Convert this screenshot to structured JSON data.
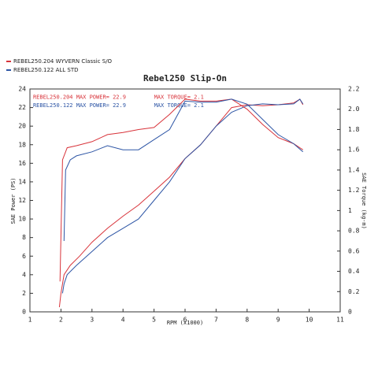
{
  "chart_data": {
    "type": "line",
    "title": "Rebel250 Slip-On",
    "x_label": "RPM (x1000)",
    "y_label": "SAE Power (PS)",
    "y2_label": "SAE Torque (kg-m)",
    "xlim": [
      1,
      11
    ],
    "xticks": [
      1,
      2,
      3,
      4,
      5,
      6,
      7,
      8,
      9,
      10,
      11
    ],
    "ylim": [
      0,
      24
    ],
    "yticks": [
      0,
      2,
      4,
      6,
      8,
      10,
      12,
      14,
      16,
      18,
      20,
      22,
      24
    ],
    "y2lim": [
      0,
      2.2
    ],
    "y2ticks": [
      0,
      0.2,
      0.4,
      0.6,
      0.8,
      1,
      1.2,
      1.4,
      1.6,
      1.8,
      {
        "value": 2,
        "label": "2.0"
      },
      2.2
    ],
    "annotations": [
      {
        "text": "REBEL250.204  MAX POWER= 22.9",
        "color": "#d8333a",
        "x": 1.1,
        "y": 23.1
      },
      {
        "text": "MAX TORQUE= 2.1",
        "color": "#d8333a",
        "x": 5,
        "y": 23.1
      },
      {
        "text": "REBEL250.122  MAX POWER= 22.9",
        "color": "#2d55a5",
        "x": 1.1,
        "y": 22.2
      },
      {
        "text": "MAX TORQUE= 2.1",
        "color": "#2d55a5",
        "x": 5,
        "y": 22.2
      }
    ],
    "legend": [
      "REBEL250.204  WYVERN Classic S/O",
      "REBEL250.122  ALL STD"
    ],
    "legend_colors": [
      "#d8333a",
      "#2d55a5"
    ],
    "series": [
      {
        "color": "#d8333a",
        "axis": "y",
        "x": [
          1.95,
          2.0,
          2.1,
          2.3,
          2.6,
          3,
          3.5,
          4,
          4.5,
          5,
          5.5,
          6,
          6.5,
          7,
          7.5,
          8,
          8.5,
          9,
          9.5,
          9.7,
          9.8
        ],
        "values": [
          0.5,
          2,
          4,
          5,
          6,
          7.5,
          9,
          10.3,
          11.5,
          13,
          14.5,
          16.5,
          18,
          20,
          22,
          22.3,
          22.2,
          22.3,
          22.5,
          22.9,
          22.3
        ]
      },
      {
        "color": "#2d55a5",
        "axis": "y",
        "x": [
          2.05,
          2.1,
          2.2,
          2.5,
          3,
          3.5,
          4,
          4.5,
          5,
          5.5,
          6,
          6.5,
          7,
          7.5,
          8,
          8.5,
          9,
          9.5,
          9.7,
          9.8
        ],
        "values": [
          2,
          3,
          4,
          5,
          6.5,
          8,
          9,
          10,
          12,
          14,
          16.5,
          18,
          20,
          21.5,
          22.2,
          22.4,
          22.3,
          22.4,
          22.9,
          22.4
        ]
      },
      {
        "color": "#d8333a",
        "axis": "y2",
        "x": [
          1.97,
          2.05,
          2.2,
          2.5,
          3,
          3.5,
          4,
          4.5,
          5,
          5.5,
          6,
          6.5,
          7,
          7.5,
          8,
          8.5,
          9,
          9.5,
          9.8
        ],
        "values": [
          0.3,
          1.5,
          1.62,
          1.64,
          1.68,
          1.75,
          1.77,
          1.8,
          1.82,
          1.95,
          2.1,
          2.08,
          2.08,
          2.1,
          2.0,
          1.85,
          1.72,
          1.66,
          1.6
        ]
      },
      {
        "color": "#2d55a5",
        "axis": "y2",
        "x": [
          2.1,
          2.15,
          2.3,
          2.5,
          3,
          3.5,
          4,
          4.5,
          5,
          5.5,
          6,
          6.5,
          7,
          7.5,
          8,
          8.5,
          9,
          9.5,
          9.8
        ],
        "values": [
          0.7,
          1.4,
          1.5,
          1.54,
          1.58,
          1.64,
          1.6,
          1.6,
          1.7,
          1.8,
          2.08,
          2.07,
          2.07,
          2.1,
          2.05,
          1.9,
          1.75,
          1.66,
          1.58
        ]
      }
    ]
  }
}
